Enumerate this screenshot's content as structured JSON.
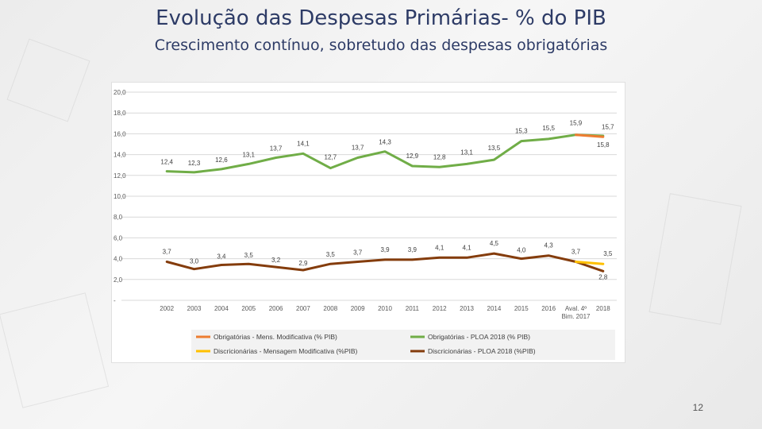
{
  "slide": {
    "title": "Evolução das Despesas Primárias- % do PIB",
    "subtitle": "Crescimento contínuo, sobretudo das despesas obrigatórias",
    "page_number": "12"
  },
  "colors": {
    "obrigatorias_mensagem": "#ed7d31",
    "obrigatorias_ploa": "#70ad47",
    "discricionarias_mensagem": "#ffc000",
    "discricionarias_ploa": "#843c0c"
  },
  "chart_data": {
    "type": "line",
    "title": "Evolução das Despesas Primárias- % do PIB",
    "xlabel": "",
    "ylabel": "% do PIB",
    "ylim": [
      0,
      20
    ],
    "yticks": [
      "-",
      "2,0",
      "4,0",
      "6,0",
      "8,0",
      "10,0",
      "12,0",
      "14,0",
      "16,0",
      "18,0",
      "20,0"
    ],
    "grid": true,
    "categories": [
      "2002",
      "2003",
      "2004",
      "2005",
      "2006",
      "2007",
      "2008",
      "2009",
      "2010",
      "2011",
      "2012",
      "2013",
      "2014",
      "2015",
      "2016",
      "Aval. 4º Bim. 2017",
      "2018"
    ],
    "series": [
      {
        "name": "Obrigatórias - Mens. Modificativa (% PIB)",
        "color_key": "obrigatorias_mensagem",
        "values": [
          null,
          null,
          null,
          null,
          null,
          null,
          null,
          null,
          null,
          null,
          null,
          null,
          null,
          null,
          null,
          15.9,
          15.7
        ],
        "labels": [
          null,
          null,
          null,
          null,
          null,
          null,
          null,
          null,
          null,
          null,
          null,
          null,
          null,
          null,
          null,
          null,
          "15,7"
        ],
        "label_pos": "above"
      },
      {
        "name": "Obrigatórias - PLOA 2018 (% PIB)",
        "color_key": "obrigatorias_ploa",
        "values": [
          12.4,
          12.3,
          12.6,
          13.1,
          13.7,
          14.1,
          12.7,
          13.7,
          14.3,
          12.9,
          12.8,
          13.1,
          13.5,
          15.3,
          15.5,
          15.9,
          15.8
        ],
        "labels": [
          "12,4",
          "12,3",
          "12,6",
          "13,1",
          "13,7",
          "14,1",
          "12,7",
          "13,7",
          "14,3",
          "12,9",
          "12,8",
          "13,1",
          "13,5",
          "15,3",
          "15,5",
          "15,9",
          "15,8"
        ],
        "label_pos": "above"
      },
      {
        "name": "Discricionárias - Mensagem Modificativa (%PIB)",
        "color_key": "discricionarias_mensagem",
        "values": [
          null,
          null,
          null,
          null,
          null,
          null,
          null,
          null,
          null,
          null,
          null,
          null,
          null,
          null,
          null,
          3.7,
          3.5
        ],
        "labels": [
          null,
          null,
          null,
          null,
          null,
          null,
          null,
          null,
          null,
          null,
          null,
          null,
          null,
          null,
          null,
          null,
          "3,5"
        ],
        "label_pos": "above"
      },
      {
        "name": "Discricionárias - PLOA 2018 (%PIB)",
        "color_key": "discricionarias_ploa",
        "values": [
          3.7,
          3.0,
          3.4,
          3.5,
          3.2,
          2.9,
          3.5,
          3.7,
          3.9,
          3.9,
          4.1,
          4.1,
          4.5,
          4.0,
          4.3,
          3.7,
          2.8
        ],
        "labels": [
          "3,7",
          "3,0",
          "3,4",
          "3,5",
          "3,2",
          "2,9",
          "3,5",
          "3,7",
          "3,9",
          "3,9",
          "4,1",
          "4,1",
          "4,5",
          "4,0",
          "4,3",
          "3,7",
          "2,8"
        ],
        "label_pos": "above"
      }
    ],
    "legend": {
      "position": "bottom",
      "items": [
        "Obrigatórias - Mens. Modificativa (% PIB)",
        "Obrigatórias - PLOA 2018 (% PIB)",
        "Discricionárias - Mensagem Modificativa  (%PIB)",
        "Discricionárias - PLOA 2018 (%PIB)"
      ]
    }
  }
}
